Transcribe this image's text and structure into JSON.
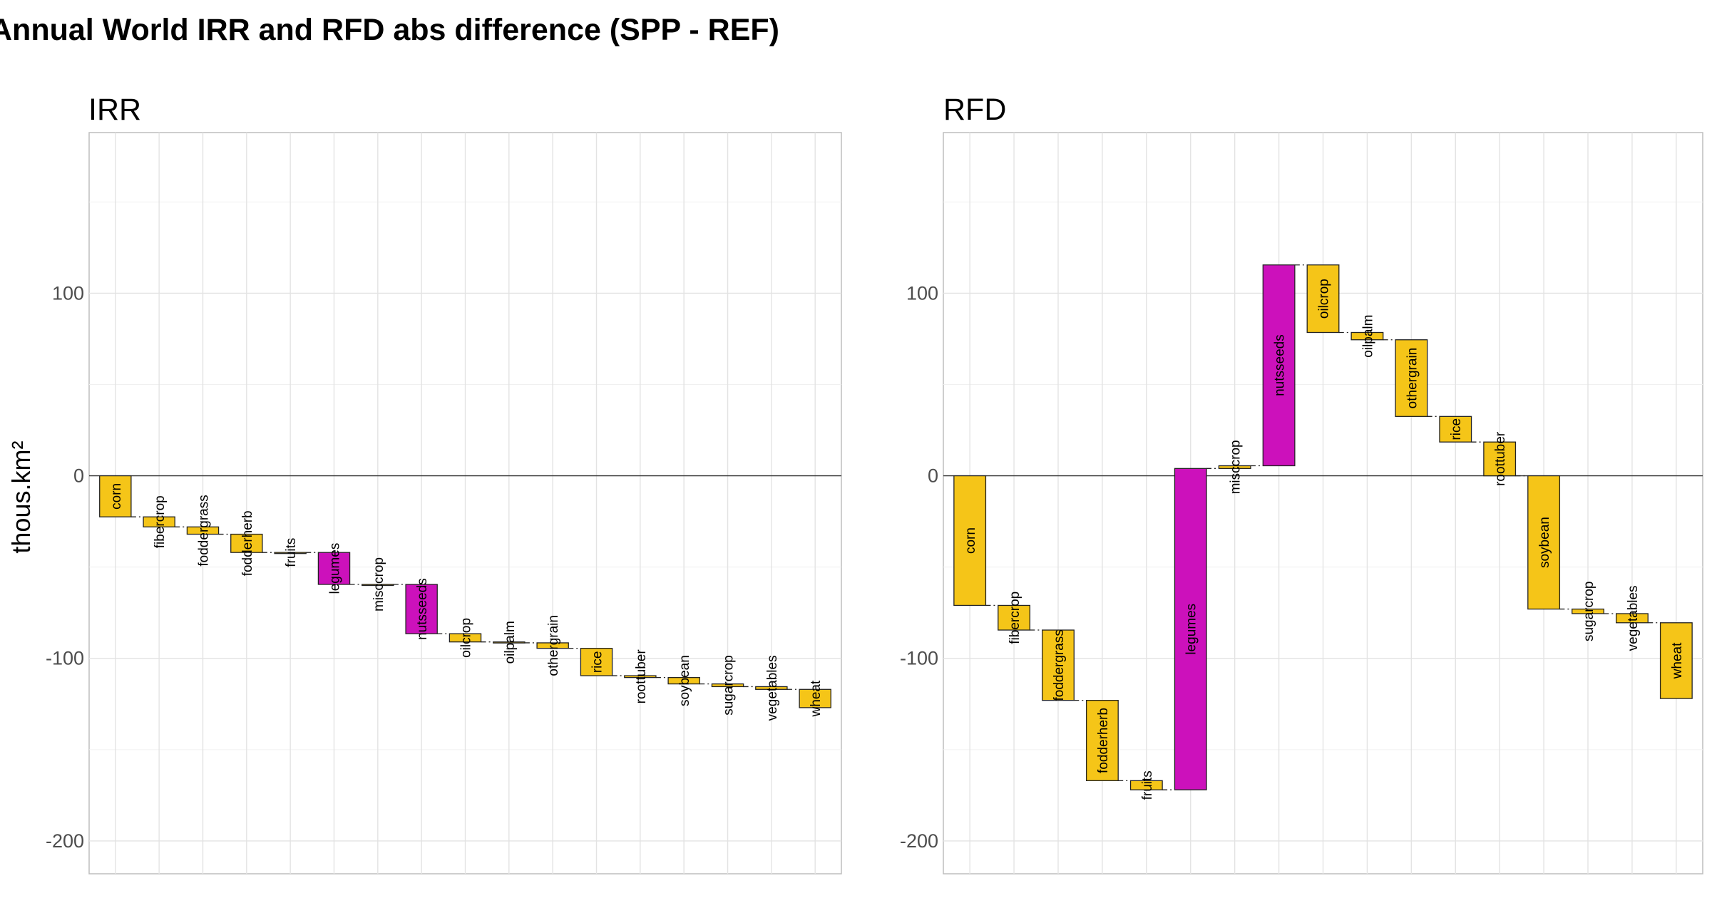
{
  "title": "Annual World IRR and RFD abs difference (SPP - REF)",
  "colors": {
    "positive": "#F5C518",
    "negative": "#CC11BB"
  },
  "chart_data": [
    {
      "type": "bar",
      "subtype": "waterfall",
      "panel": "IRR",
      "ylabel": "thous.km²",
      "ylim": [
        -218,
        188
      ],
      "yticks": [
        -200,
        -100,
        0,
        100
      ],
      "grid": true,
      "categories": [
        "corn",
        "fibercrop",
        "foddergrass",
        "fodderherb",
        "fruits",
        "legumes",
        "misccrop",
        "nutsseeds",
        "oilcrop",
        "oilpalm",
        "othergrain",
        "rice",
        "roottuber",
        "soybean",
        "sugarcrop",
        "vegetables",
        "wheat"
      ],
      "values": [
        -22.5,
        -5.5,
        -4.0,
        -10.0,
        0.0,
        -17.5,
        0.0,
        -27.0,
        -4.5,
        -0.5,
        -3.0,
        -15.0,
        -1.0,
        -3.5,
        -1.5,
        -1.5,
        -10.0
      ],
      "highlight": [
        "legumes",
        "nutsseeds"
      ]
    },
    {
      "type": "bar",
      "subtype": "waterfall",
      "panel": "RFD",
      "ylabel": "",
      "ylim": [
        -218,
        188
      ],
      "yticks": [
        -200,
        -100,
        0,
        100
      ],
      "grid": true,
      "categories": [
        "corn",
        "fibercrop",
        "foddergrass",
        "fodderherb",
        "fruits",
        "legumes",
        "misccrop",
        "nutsseeds",
        "oilcrop",
        "oilpalm",
        "othergrain",
        "rice",
        "roottuber",
        "soybean",
        "sugarcrop",
        "vegetables",
        "wheat"
      ],
      "values": [
        -71.0,
        -13.5,
        -38.5,
        -44.0,
        -5.0,
        176.0,
        1.5,
        110.0,
        -37.0,
        -4.0,
        -42.0,
        -14.0,
        -18.5,
        -73.0,
        -2.5,
        -5.0,
        -41.5
      ],
      "highlight": [
        "legumes",
        "nutsseeds"
      ]
    }
  ]
}
